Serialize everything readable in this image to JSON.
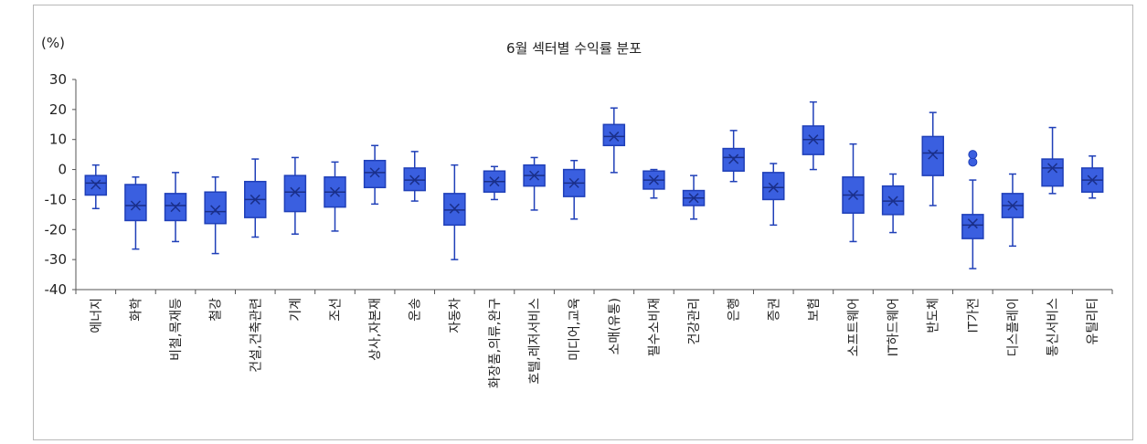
{
  "chart_data": {
    "type": "box",
    "title": "6월 섹터별 수익률 분포",
    "unit_label": "(%)",
    "ylim": [
      -40,
      30
    ],
    "yticks": [
      30,
      20,
      10,
      0,
      -10,
      -20,
      -30,
      -40
    ],
    "grid": false,
    "colors": {
      "fill": "#3a5fe0",
      "stroke": "#1f3fb8",
      "outlier": "#3a5fe0"
    },
    "categories": [
      "에너지",
      "화학",
      "비철,목재등",
      "철강",
      "건설,건축관련",
      "기계",
      "조선",
      "상사,자본재",
      "운송",
      "자동차",
      "화장품,의류,완구",
      "호텔,레저서비스",
      "미디어,교육",
      "소매(유통)",
      "필수소비재",
      "건강관리",
      "은행",
      "증권",
      "보험",
      "소프트웨어",
      "IT하드웨어",
      "반도체",
      "IT가전",
      "디스플레이",
      "통신서비스",
      "유틸리티"
    ],
    "boxes": [
      {
        "min": -13,
        "q1": -8.5,
        "median": -4.5,
        "mean": -5,
        "q3": -2,
        "max": 1.5
      },
      {
        "min": -26.5,
        "q1": -17,
        "median": -12,
        "mean": -12,
        "q3": -5,
        "max": -2.5
      },
      {
        "min": -24,
        "q1": -17,
        "median": -12,
        "mean": -12.5,
        "q3": -8,
        "max": -1
      },
      {
        "min": -28,
        "q1": -18,
        "median": -14,
        "mean": -13.5,
        "q3": -7.5,
        "max": -2.5
      },
      {
        "min": -22.5,
        "q1": -16,
        "median": -10,
        "mean": -10,
        "q3": -4,
        "max": 3.5
      },
      {
        "min": -21.5,
        "q1": -14,
        "median": -7.5,
        "mean": -7.5,
        "q3": -2,
        "max": 4
      },
      {
        "min": -20.5,
        "q1": -12.5,
        "median": -7.5,
        "mean": -7.5,
        "q3": -2.5,
        "max": 2.5
      },
      {
        "min": -11.5,
        "q1": -6,
        "median": -1,
        "mean": -1,
        "q3": 3,
        "max": 8
      },
      {
        "min": -10.5,
        "q1": -7,
        "median": -3.5,
        "mean": -3.5,
        "q3": 0.5,
        "max": 6
      },
      {
        "min": -30,
        "q1": -18.5,
        "median": -13.5,
        "mean": -13,
        "q3": -8,
        "max": 1.5
      },
      {
        "min": -10,
        "q1": -7.5,
        "median": -4,
        "mean": -4,
        "q3": -0.5,
        "max": 1
      },
      {
        "min": -13.5,
        "q1": -5.5,
        "median": -2,
        "mean": -2,
        "q3": 1.5,
        "max": 4
      },
      {
        "min": -16.5,
        "q1": -9,
        "median": -4.5,
        "mean": -4.5,
        "q3": 0,
        "max": 3
      },
      {
        "min": -1,
        "q1": 8,
        "median": 11,
        "mean": 11,
        "q3": 15,
        "max": 20.5
      },
      {
        "min": -9.5,
        "q1": -6.5,
        "median": -3.5,
        "mean": -3.5,
        "q3": -0.5,
        "max": 0
      },
      {
        "min": -16.5,
        "q1": -12,
        "median": -9.5,
        "mean": -9.5,
        "q3": -7,
        "max": -2
      },
      {
        "min": -4,
        "q1": -0.5,
        "median": 4,
        "mean": 3.5,
        "q3": 7,
        "max": 13
      },
      {
        "min": -18.5,
        "q1": -10,
        "median": -6,
        "mean": -6,
        "q3": -1,
        "max": 2
      },
      {
        "min": 0,
        "q1": 5,
        "median": 10,
        "mean": 10,
        "q3": 14.5,
        "max": 22.5
      },
      {
        "min": -24,
        "q1": -14.5,
        "median": -8.5,
        "mean": -8.5,
        "q3": -2.5,
        "max": 8.5
      },
      {
        "min": -21,
        "q1": -15,
        "median": -10.5,
        "mean": -10.5,
        "q3": -5.5,
        "max": -1.5
      },
      {
        "min": -12,
        "q1": -2,
        "median": 5.5,
        "mean": 5,
        "q3": 11,
        "max": 19
      },
      {
        "min": -33,
        "q1": -23,
        "median": -18.5,
        "mean": -18,
        "q3": -15,
        "max": -3.5,
        "outliers": [
          2.5,
          5
        ]
      },
      {
        "min": -25.5,
        "q1": -16,
        "median": -12,
        "mean": -12,
        "q3": -8,
        "max": -1.5
      },
      {
        "min": -8,
        "q1": -5.5,
        "median": 0.5,
        "mean": 0.5,
        "q3": 3.5,
        "max": 14
      },
      {
        "min": -9.5,
        "q1": -7.5,
        "median": -3.5,
        "mean": -3.5,
        "q3": 0.5,
        "max": 4.5
      }
    ]
  }
}
